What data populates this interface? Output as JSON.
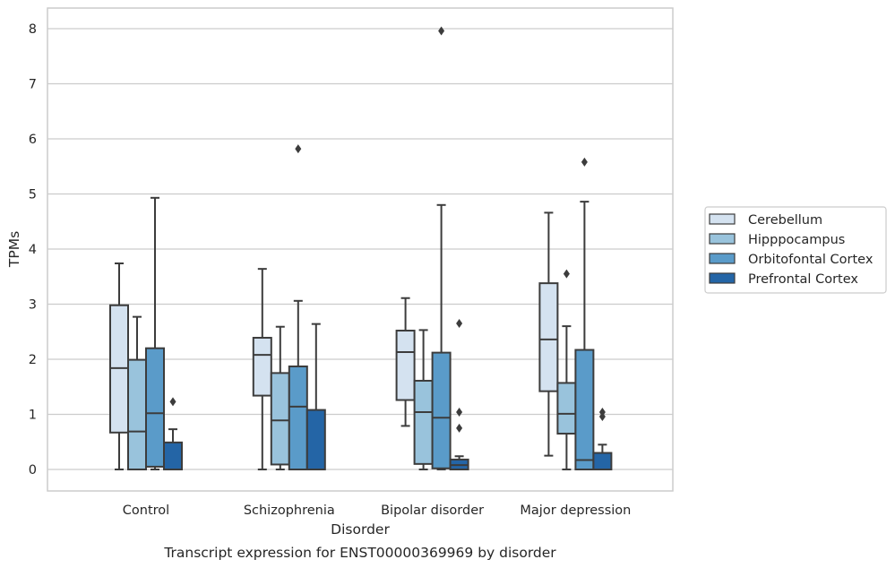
{
  "chart_data": {
    "type": "box",
    "xlabel": "Disorder",
    "ylabel": "TPMs",
    "caption": "Transcript expression for ENST00000369969 by disorder",
    "categories": [
      "Control",
      "Schizophrenia",
      "Bipolar disorder",
      "Major depression"
    ],
    "ylim": [
      -0.4,
      8.4
    ],
    "yticks": [
      0,
      1,
      2,
      3,
      4,
      5,
      6,
      7,
      8
    ],
    "grid": true,
    "legend_position": "right",
    "series": [
      {
        "name": "Cerebellum",
        "color": "#d4e2f0",
        "boxes": [
          {
            "whislo": 0.0,
            "q1": 0.67,
            "med": 1.84,
            "q3": 2.98,
            "whishi": 3.74,
            "fliers": []
          },
          {
            "whislo": 0.0,
            "q1": 1.34,
            "med": 2.08,
            "q3": 2.39,
            "whishi": 3.64,
            "fliers": []
          },
          {
            "whislo": 0.79,
            "q1": 1.26,
            "med": 2.13,
            "q3": 2.52,
            "whishi": 3.11,
            "fliers": []
          },
          {
            "whislo": 0.25,
            "q1": 1.42,
            "med": 2.36,
            "q3": 3.38,
            "whishi": 4.66,
            "fliers": []
          }
        ]
      },
      {
        "name": "Hipppocampus",
        "color": "#99c3dc",
        "boxes": [
          {
            "whislo": 0.0,
            "q1": 0.0,
            "med": 0.69,
            "q3": 1.99,
            "whishi": 2.77,
            "fliers": []
          },
          {
            "whislo": 0.0,
            "q1": 0.09,
            "med": 0.89,
            "q3": 1.75,
            "whishi": 2.59,
            "fliers": []
          },
          {
            "whislo": 0.0,
            "q1": 0.1,
            "med": 1.04,
            "q3": 1.61,
            "whishi": 2.53,
            "fliers": []
          },
          {
            "whislo": 0.0,
            "q1": 0.65,
            "med": 1.01,
            "q3": 1.57,
            "whishi": 2.6,
            "fliers": [
              3.55
            ]
          }
        ]
      },
      {
        "name": "Orbitofontal Cortex",
        "color": "#5a9bc9",
        "boxes": [
          {
            "whislo": 0.0,
            "q1": 0.05,
            "med": 1.02,
            "q3": 2.2,
            "whishi": 4.93,
            "fliers": []
          },
          {
            "whislo": 0.0,
            "q1": 0.0,
            "med": 1.14,
            "q3": 1.87,
            "whishi": 3.06,
            "fliers": [
              5.82
            ]
          },
          {
            "whislo": 0.0,
            "q1": 0.02,
            "med": 0.94,
            "q3": 2.12,
            "whishi": 4.8,
            "fliers": [
              7.96
            ]
          },
          {
            "whislo": 0.0,
            "q1": 0.0,
            "med": 0.17,
            "q3": 2.17,
            "whishi": 4.86,
            "fliers": [
              5.58
            ]
          }
        ]
      },
      {
        "name": "Prefrontal Cortex",
        "color": "#2465a6",
        "boxes": [
          {
            "whislo": 0.0,
            "q1": 0.0,
            "med": 0.0,
            "q3": 0.49,
            "whishi": 0.73,
            "fliers": [
              1.23
            ]
          },
          {
            "whislo": 0.0,
            "q1": 0.0,
            "med": 0.0,
            "q3": 1.08,
            "whishi": 2.64,
            "fliers": []
          },
          {
            "whislo": 0.0,
            "q1": 0.0,
            "med": 0.08,
            "q3": 0.18,
            "whishi": 0.24,
            "fliers": [
              0.75,
              1.04,
              2.65
            ]
          },
          {
            "whislo": 0.0,
            "q1": 0.0,
            "med": 0.0,
            "q3": 0.3,
            "whishi": 0.45,
            "fliers": [
              0.96,
              1.04
            ]
          }
        ]
      }
    ],
    "line_color": "#3c3c3c",
    "grid_color": "#cccccc",
    "frame_color": "#cccccc"
  }
}
